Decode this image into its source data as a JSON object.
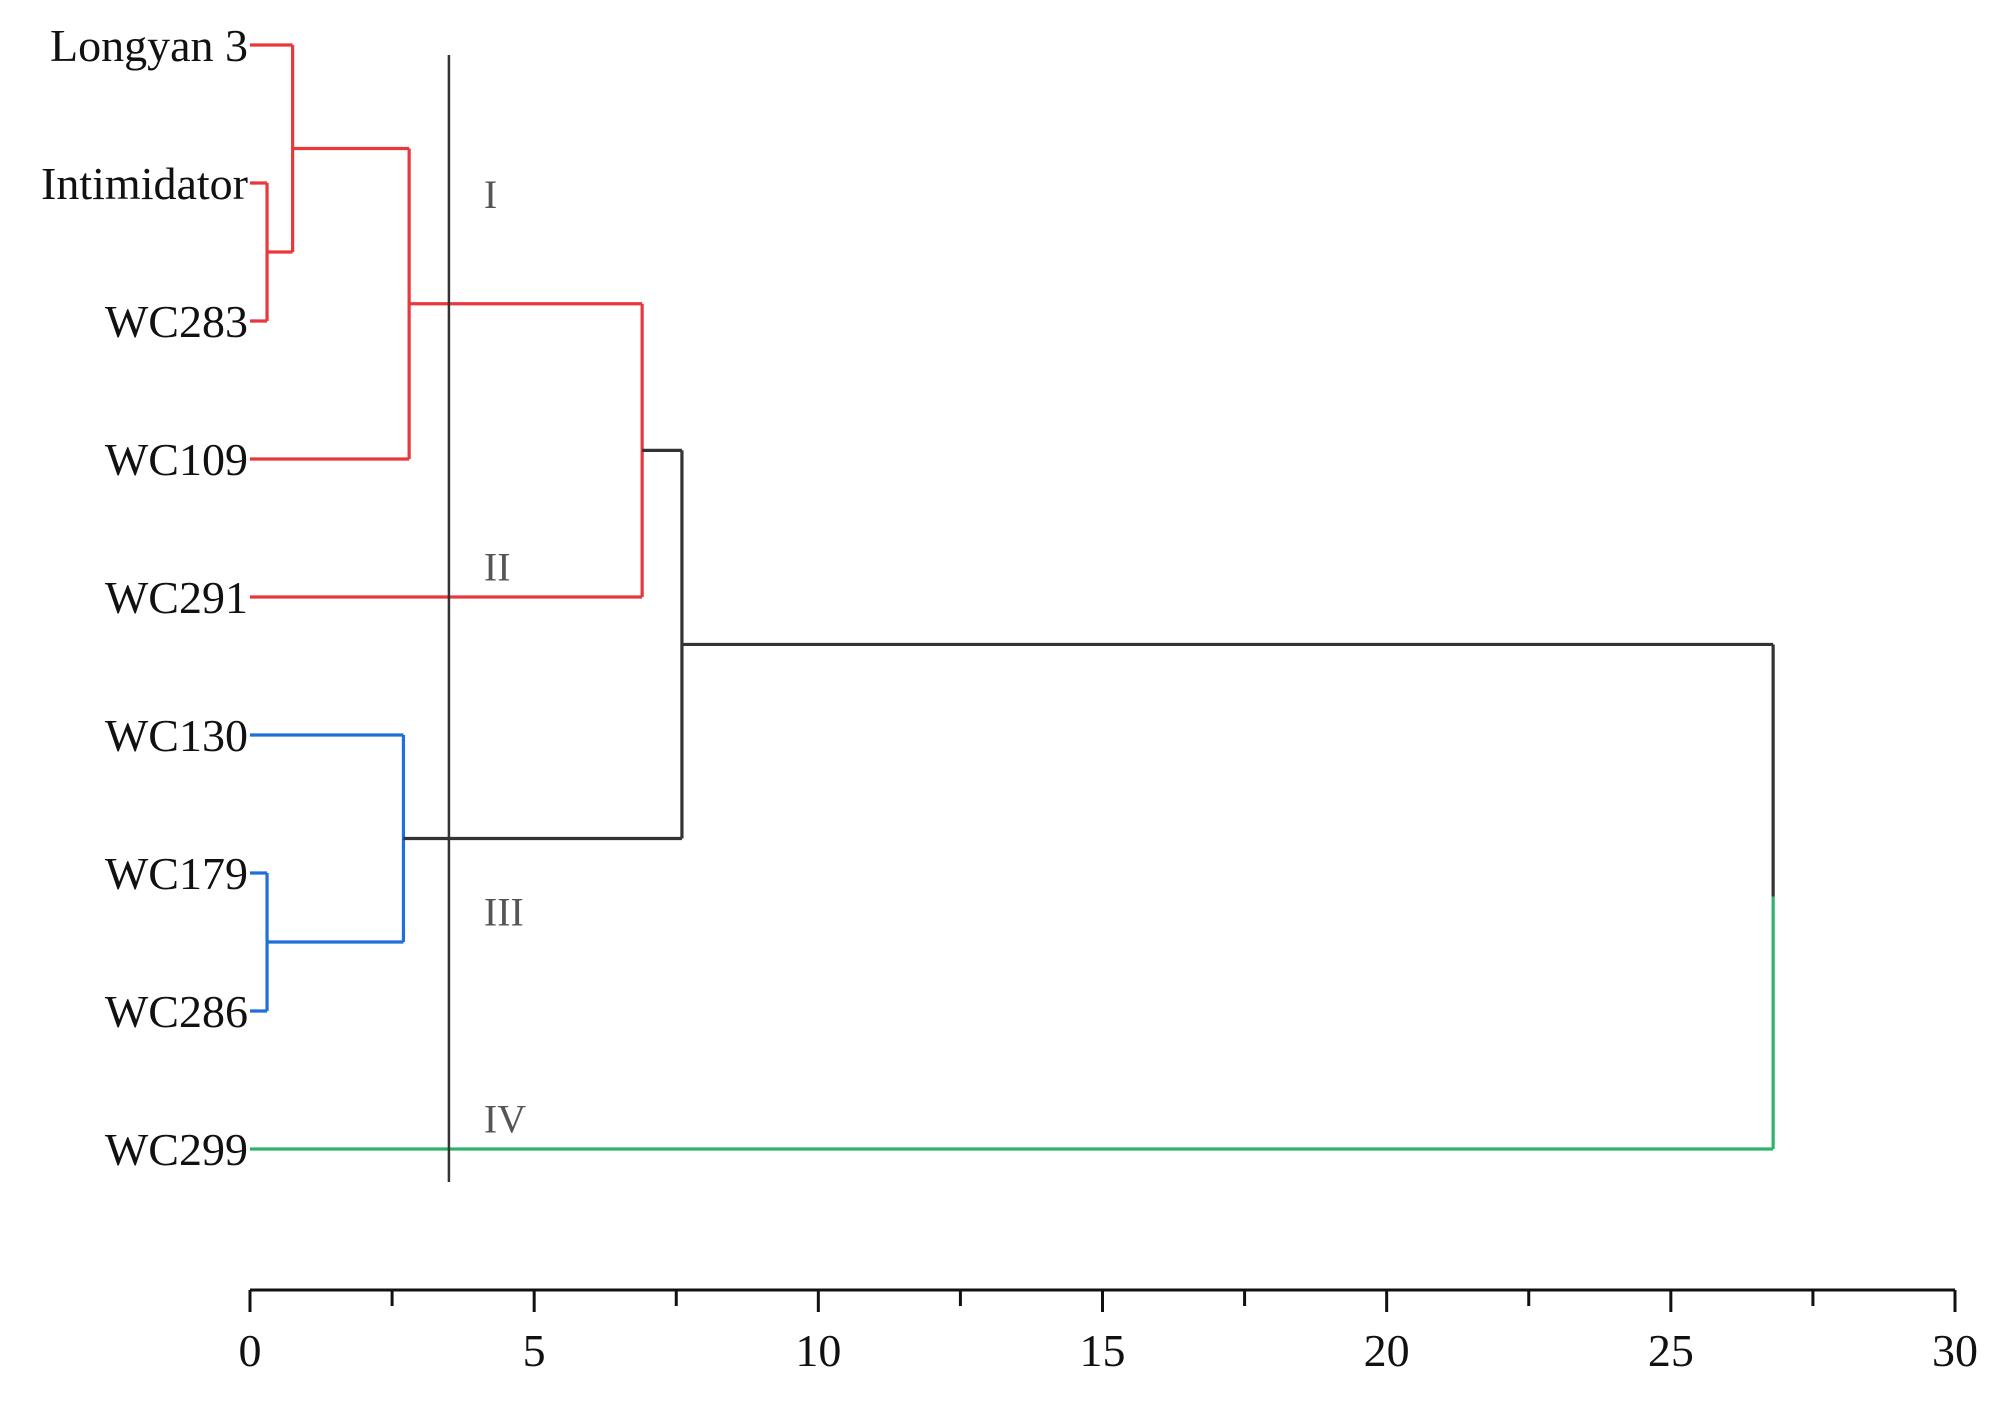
{
  "chart_data": {
    "type": "dendrogram",
    "orientation": "horizontal",
    "leaves": [
      "Longyan 3",
      "Intimidator",
      "WC283",
      "WC109",
      "WC291",
      "WC130",
      "WC179",
      "WC286",
      "WC299"
    ],
    "merges": [
      {
        "id": "m1",
        "a": "Intimidator",
        "b": "WC283",
        "height": 0.3,
        "color": "#e8383d"
      },
      {
        "id": "m2",
        "a": "Longyan 3",
        "b": "m1",
        "height": 0.75,
        "color": "#e8383d"
      },
      {
        "id": "m3",
        "a": "m2",
        "b": "WC109",
        "height": 2.8,
        "color": "#e8383d"
      },
      {
        "id": "m4",
        "a": "m3",
        "b": "WC291",
        "height": 6.9,
        "color": "#e8383d"
      },
      {
        "id": "m5",
        "a": "WC179",
        "b": "WC286",
        "height": 0.3,
        "color": "#1f6fd8"
      },
      {
        "id": "m6",
        "a": "WC130",
        "b": "m5",
        "height": 2.7,
        "color": "#1f6fd8"
      },
      {
        "id": "m7",
        "a": "m4",
        "b": "m6",
        "height": 7.6,
        "color": "#333333"
      },
      {
        "id": "m8",
        "a": "m7",
        "b": "WC299",
        "height": 26.8,
        "color": "#333333",
        "b_color": "#2fb36a"
      }
    ],
    "leaf_colors": {
      "Longyan 3": "#e8383d",
      "Intimidator": "#e8383d",
      "WC283": "#e8383d",
      "WC109": "#e8383d",
      "WC291": "#e8383d",
      "WC130": "#1f6fd8",
      "WC179": "#1f6fd8",
      "WC286": "#1f6fd8",
      "WC299": "#2fb36a"
    },
    "cut_line": 3.5,
    "cluster_labels": [
      {
        "text": "I",
        "after_leaf": 1
      },
      {
        "text": "II",
        "after_leaf": 3.7
      },
      {
        "text": "III",
        "after_leaf": 6.2
      },
      {
        "text": "IV",
        "after_leaf": 7.7
      }
    ],
    "xlim": [
      0,
      30
    ],
    "x_ticks": [
      0,
      5,
      10,
      15,
      20,
      25,
      30
    ],
    "x_minor_step": 2.5,
    "xlabel": "",
    "ylabel": "",
    "title": ""
  }
}
